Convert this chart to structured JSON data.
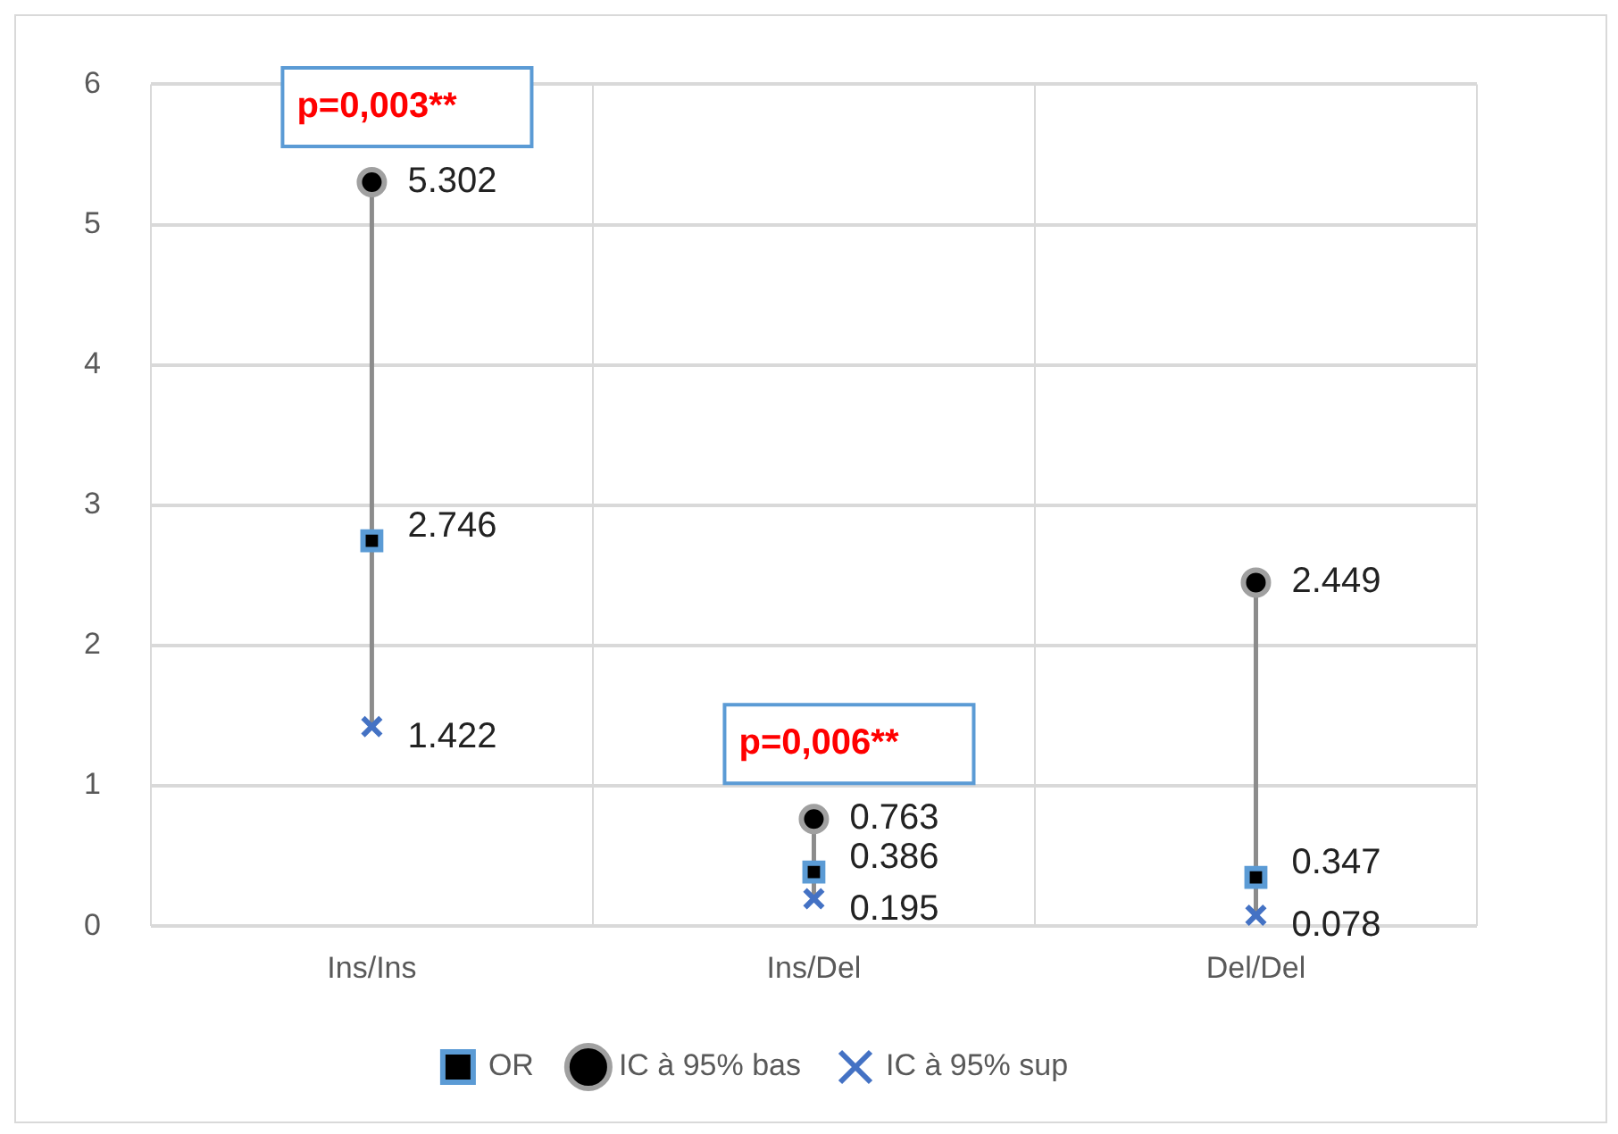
{
  "chart_data": {
    "type": "scatter",
    "categories": [
      "Ins/Ins",
      "Ins/Del",
      "Del/Del"
    ],
    "series": [
      {
        "name": "OR",
        "color": "#5b9bd5",
        "marker": "square",
        "values": [
          2.746,
          0.386,
          0.347
        ]
      },
      {
        "name": "IC à 95% bas",
        "color": "#a0a0a0",
        "marker": "circle",
        "values": [
          5.302,
          0.763,
          2.449
        ]
      },
      {
        "name": "IC à 95% sup",
        "color": "#4472c4",
        "marker": "cross",
        "values": [
          1.422,
          0.195,
          0.078
        ]
      }
    ],
    "ylim": [
      0,
      6
    ],
    "yticks": [
      0,
      1,
      2,
      3,
      4,
      5,
      6
    ],
    "grid": true,
    "legend": "bottom",
    "data_labels": true,
    "annotations": [
      "p=0,003**",
      "p=0,006**"
    ]
  }
}
